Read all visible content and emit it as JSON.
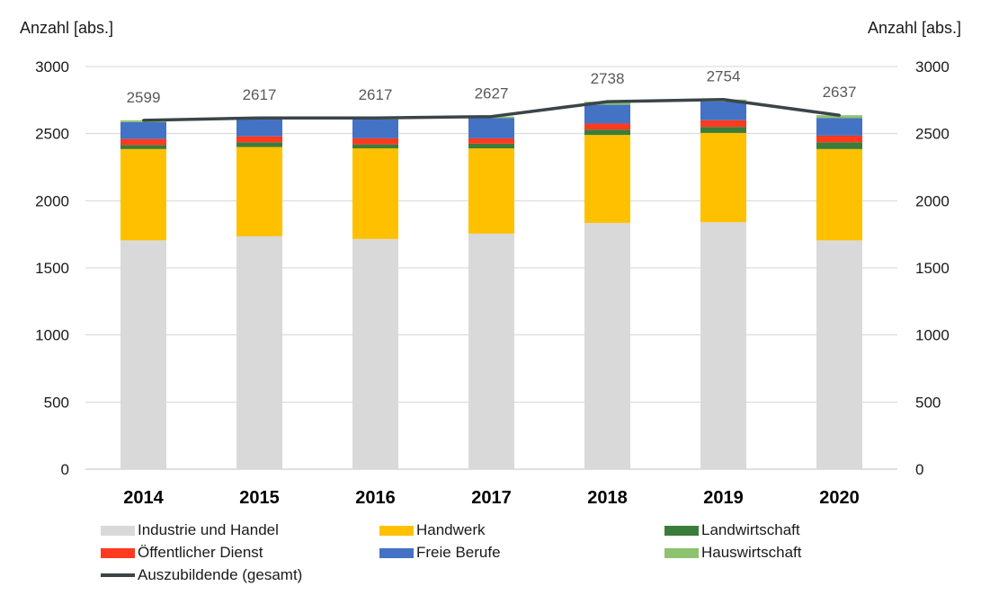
{
  "chart_data": {
    "type": "bar",
    "stacked": true,
    "categories": [
      "2014",
      "2015",
      "2016",
      "2017",
      "2018",
      "2019",
      "2020"
    ],
    "ylabel_left": "Anzahl [abs.]",
    "ylabel_right": "Anzahl [abs.]",
    "ylim": [
      0,
      3000
    ],
    "yticks": [
      0,
      500,
      1000,
      1500,
      2000,
      2500,
      3000
    ],
    "ytick_labels": [
      "0",
      "500",
      "1000",
      "1500",
      "2000",
      "2500",
      "3000"
    ],
    "grid": true,
    "legend_position": "bottom",
    "series": [
      {
        "name": "Industrie und Handel",
        "color": "#d9d9d9",
        "values": [
          1705,
          1735,
          1715,
          1755,
          1835,
          1840,
          1705
        ]
      },
      {
        "name": "Handwerk",
        "color": "#ffc000",
        "values": [
          680,
          665,
          675,
          635,
          655,
          665,
          680
        ]
      },
      {
        "name": "Landwirtschaft",
        "color": "#3a7d3a",
        "values": [
          30,
          35,
          30,
          35,
          40,
          45,
          50
        ]
      },
      {
        "name": "Öffentlicher Dienst",
        "color": "#ff3a1f",
        "values": [
          45,
          45,
          45,
          40,
          45,
          50,
          50
        ]
      },
      {
        "name": "Freie Berufe",
        "color": "#4472c4",
        "values": [
          125,
          125,
          140,
          150,
          140,
          140,
          130
        ]
      },
      {
        "name": "Hauswirtschaft",
        "color": "#8dc26f",
        "values": [
          14,
          12,
          12,
          12,
          23,
          14,
          22
        ]
      }
    ],
    "line_series": {
      "name": "Auszubildende (gesamt)",
      "color": "#3b4548",
      "values": [
        2599,
        2617,
        2617,
        2627,
        2738,
        2754,
        2637
      ],
      "labels": [
        "2599",
        "2617",
        "2617",
        "2627",
        "2738",
        "2754",
        "2637"
      ]
    }
  }
}
